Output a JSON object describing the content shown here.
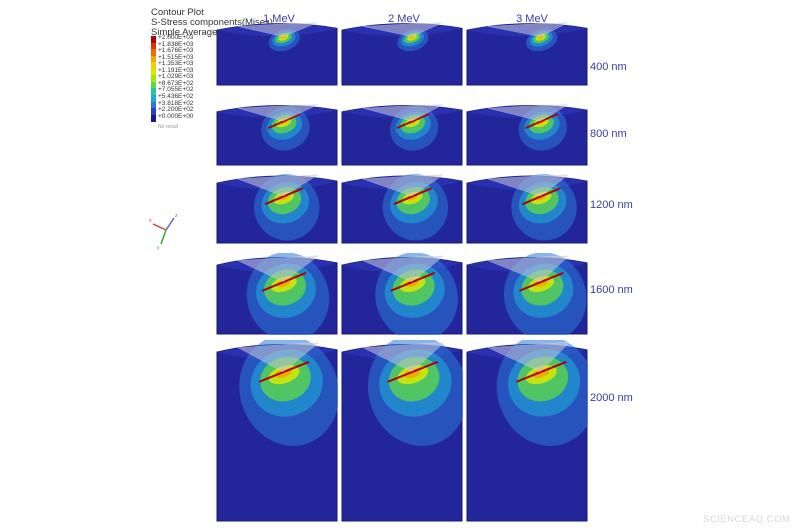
{
  "legend": {
    "title_lines": [
      "Contour Plot",
      "S-Stress components(Mises)",
      "Simple Average"
    ],
    "values": [
      "+2.000E+03",
      "+1.838E+03",
      "+1.676E+03",
      "+1.515E+03",
      "+1.353E+03",
      "+1.191E+03",
      "+1.029E+03",
      "+8.673E+02",
      "+7.055E+02",
      "+5.436E+02",
      "+3.818E+02",
      "+2.200E+02",
      "+0.000E+00"
    ],
    "colors": [
      "#b00000",
      "#e83000",
      "#f06a00",
      "#f5a500",
      "#f2d000",
      "#d8ea00",
      "#a6e800",
      "#62d840",
      "#22c89a",
      "#20a8d8",
      "#2a78d8",
      "#2a40c8",
      "#1c1490"
    ],
    "note": "No result"
  },
  "columns": [
    "1 MeV",
    "2 MeV",
    "3 MeV"
  ],
  "rows": [
    "400 nm",
    "800 nm",
    "1200 nm",
    "1600 nm",
    "2000 nm"
  ],
  "watermark": "SCIENCEAQ.COM",
  "colors": {
    "body": "#22269a",
    "body_edge": "#15186e",
    "top_face": "#2c34b4",
    "cone": "#c8c8d6",
    "label": "#3a3aa8"
  },
  "icons": [
    "axis-triad-icon"
  ]
}
